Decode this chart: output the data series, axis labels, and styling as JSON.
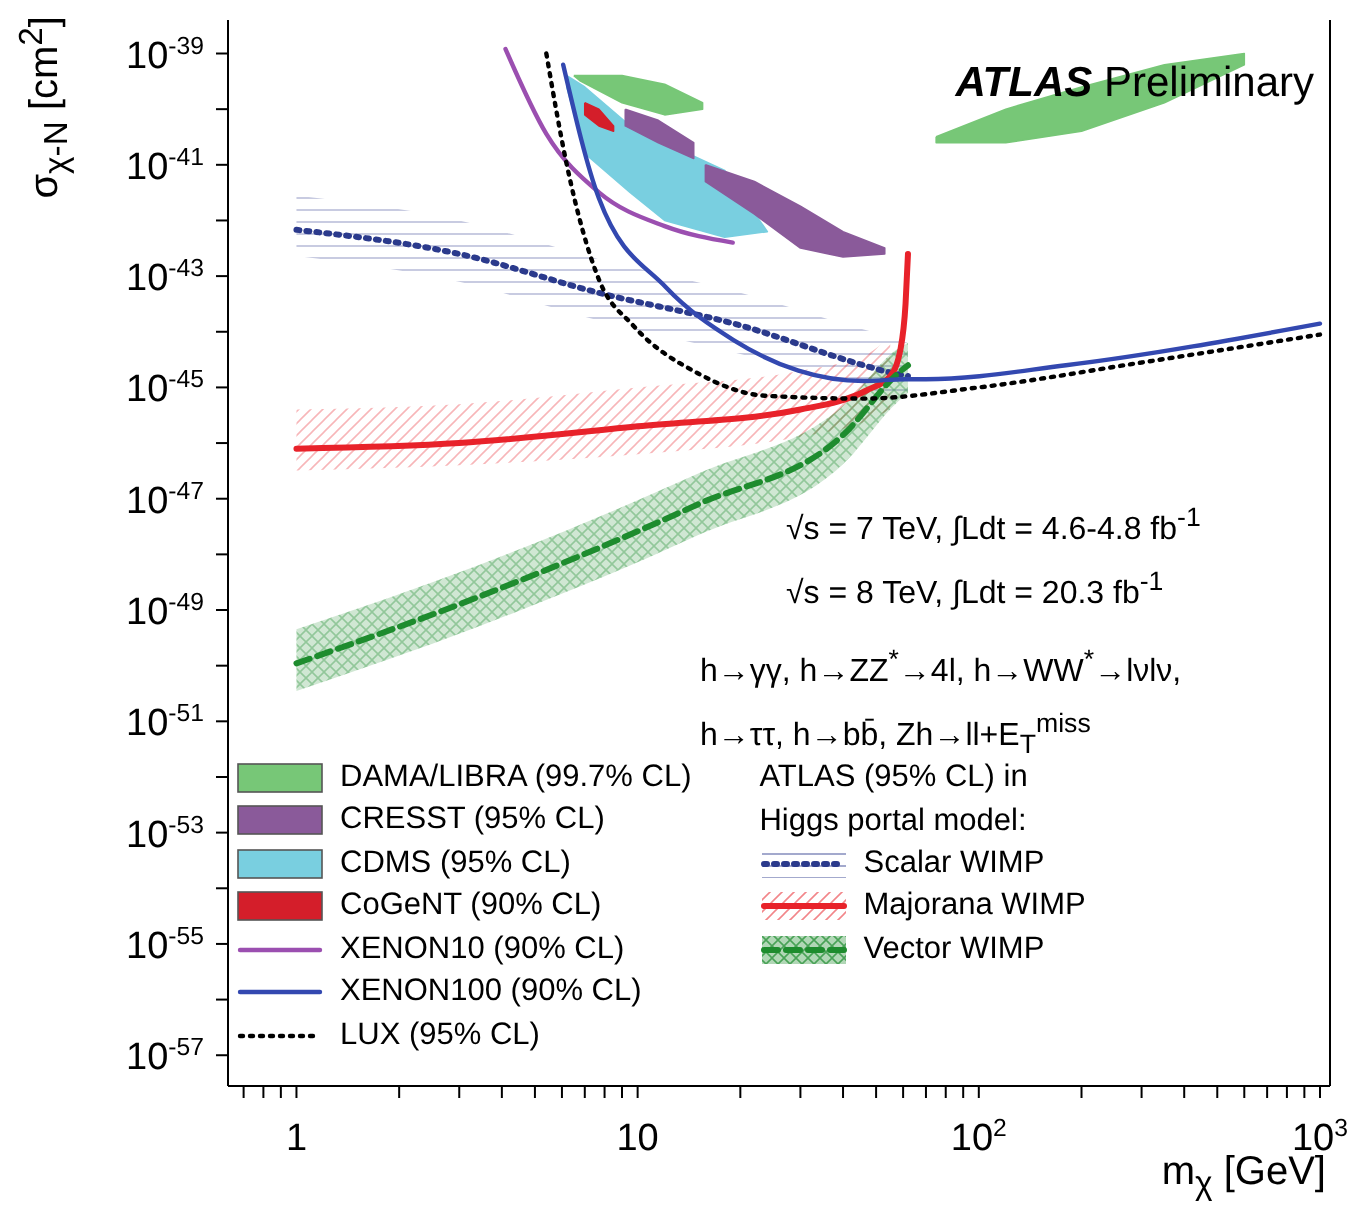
{
  "chart_data": {
    "type": "line",
    "title": "ATLAS Preliminary",
    "xlabel": "m$_{χ}$ [GeV]",
    "ylabel": "σ$_{χ-N}$ [cm$^{2}$]",
    "log": "xy",
    "xlim": [
      0.63,
      1070
    ],
    "ylim": [
      2.8e-58,
      4e-39
    ],
    "xticks": [
      {
        "value": 0.7,
        "label": null
      },
      {
        "value": 0.8,
        "label": null
      },
      {
        "value": 0.9,
        "label": null
      },
      1,
      {
        "value": 2,
        "label": null
      },
      {
        "value": 3,
        "label": null
      },
      {
        "value": 4,
        "label": null
      },
      {
        "value": 5,
        "label": null
      },
      {
        "value": 6,
        "label": null
      },
      {
        "value": 7,
        "label": null
      },
      {
        "value": 8,
        "label": null
      },
      {
        "value": 9,
        "label": null
      },
      10,
      {
        "value": 20,
        "label": null
      },
      {
        "value": 30,
        "label": null
      },
      {
        "value": 40,
        "label": null
      },
      {
        "value": 50,
        "label": null
      },
      {
        "value": 60,
        "label": null
      },
      {
        "value": 70,
        "label": null
      },
      {
        "value": 80,
        "label": null
      },
      {
        "value": 90,
        "label": null
      },
      {
        "value": 100,
        "label": "10$^{2}$"
      },
      {
        "value": 200,
        "label": null
      },
      {
        "value": 300,
        "label": null
      },
      {
        "value": 400,
        "label": null
      },
      {
        "value": 500,
        "label": null
      },
      {
        "value": 600,
        "label": null
      },
      {
        "value": 700,
        "label": null
      },
      {
        "value": 800,
        "label": null
      },
      {
        "value": 900,
        "label": null
      },
      {
        "value": 1000,
        "label": "10$^{3}$"
      }
    ],
    "yticks": [
      {
        "value": 1e-39,
        "label": "10$^{-39}$"
      },
      {
        "value": 1e-40,
        "label": null
      },
      {
        "value": 1e-41,
        "label": "10$^{-41}$"
      },
      {
        "value": 1e-42,
        "label": null
      },
      {
        "value": 1e-43,
        "label": "10$^{-43}$"
      },
      {
        "value": 1e-44,
        "label": null
      },
      {
        "value": 1e-45,
        "label": "10$^{-45}$"
      },
      {
        "value": 1e-46,
        "label": null
      },
      {
        "value": 1e-47,
        "label": "10$^{-47}$"
      },
      {
        "value": 1e-48,
        "label": null
      },
      {
        "value": 1e-49,
        "label": "10$^{-49}$"
      },
      {
        "value": 1e-50,
        "label": null
      },
      {
        "value": 1e-51,
        "label": "10$^{-51}$"
      },
      {
        "value": 1e-52,
        "label": null
      },
      {
        "value": 1e-53,
        "label": "10$^{-53}$"
      },
      {
        "value": 1e-54,
        "label": null
      },
      {
        "value": 1e-55,
        "label": "10$^{-55}$"
      },
      {
        "value": 1e-56,
        "label": null
      },
      {
        "value": 1e-57,
        "label": "10$^{-57}$"
      }
    ],
    "legend": "bottom left",
    "legend_title": "ATLAS (95% CL) in Higgs portal model:",
    "annotations": [
      "√s = 7 TeV, ∫Ldt = 4.6-4.8 fb$^{-1}$",
      "√s = 8 TeV, ∫Ldt = 20.3 fb$^{-1}$",
      "h→γγ, h→ZZ$^{*}$→4l, h→WW$^{*}$→lνlν,",
      "h→ττ, h→bb̄, Zh→ll+E$_{T}$$^{miss}$"
    ],
    "series": [
      {
        "name": "DAMA/LIBRA (99.7% CL)",
        "type": "area",
        "color": "#77c777",
        "x": [
          6.5,
          9,
          12,
          15.5,
          15.5,
          12,
          9,
          6.8,
          6.5,
          40,
          75,
          120,
          200,
          350,
          600,
          600,
          350,
          200,
          120,
          75,
          75
        ],
        "values": [
          4e-40,
          4e-40,
          2.8e-40,
          1.3e-40,
          1e-40,
          7.9e-41,
          1.3e-40,
          3.2e-40,
          4e-40,
          null,
          3.2e-41,
          1e-40,
          2.5e-40,
          6.3e-40,
          1e-39,
          6.3e-40,
          1.3e-40,
          4e-41,
          2.5e-41,
          2.5e-41,
          3.2e-41
        ]
      },
      {
        "name": "CRESST (95% CL)",
        "type": "area",
        "color": "#8a5a9a",
        "x": [
          9.2,
          11.5,
          14.6,
          14.6,
          11.5,
          9.2,
          9.2,
          15.2,
          15.8,
          22,
          30,
          40,
          53,
          53,
          40,
          30,
          22,
          15.8,
          15.8
        ],
        "values": [
          1e-40,
          6.3e-41,
          2.5e-41,
          1.3e-41,
          2.5e-41,
          5e-41,
          1e-40,
          null,
          1e-41,
          5e-42,
          1.8e-42,
          6.3e-43,
          3.2e-43,
          2.5e-43,
          2.2e-43,
          3.2e-43,
          1.3e-42,
          5e-42,
          1e-41
        ]
      },
      {
        "name": "CDMS (95% CL)",
        "type": "area",
        "color": "#79cfe0",
        "x": [
          6.2,
          7,
          9.5,
          12,
          18,
          24,
          18,
          12,
          9.5,
          7,
          6.2,
          6.2
        ],
        "values": [
          4e-40,
          2.5e-40,
          5e-41,
          2.5e-41,
          7.9e-42,
          6.3e-43,
          5e-43,
          1e-42,
          3.2e-42,
          1.6e-41,
          2.5e-40,
          4e-40
        ]
      },
      {
        "name": "CoGeNT (90% CL)",
        "type": "area",
        "color": "#d41e2a",
        "x": [
          7,
          7.7,
          8.5,
          8.5,
          7.7,
          7,
          7
        ],
        "values": [
          1.3e-40,
          1e-40,
          5e-41,
          4e-41,
          5e-41,
          7.9e-41,
          1.3e-40
        ]
      },
      {
        "name": "XENON10 (90% CL)",
        "type": "line",
        "color": "#9b4fb0",
        "line_style": "solid",
        "x": [
          4.1,
          5.4,
          7.7,
          12,
          19
        ],
        "values": [
          1.2e-39,
          3.6e-41,
          3.2e-42,
          7.9e-43,
          4e-43
        ]
      },
      {
        "name": "XENON100 (90% CL)",
        "type": "line",
        "color": "#3348b0",
        "line_style": "solid",
        "x": [
          6.05,
          7.7,
          12.1,
          19.1,
          29.6,
          46,
          61,
          70,
          180,
          1000
        ],
        "values": [
          6.3e-40,
          2.5e-42,
          6.3e-44,
          7.1e-45,
          2e-45,
          1.3e-45,
          1.4e-45,
          1.4e-45,
          2.5e-45,
          1.4e-44
        ]
      },
      {
        "name": "LUX (95% CL)",
        "type": "line",
        "color": "#000000",
        "line_style": "dotted",
        "x": [
          5.4,
          6.2,
          7.7,
          9.7,
          15,
          23.6,
          46,
          100,
          300,
          1000
        ],
        "values": [
          1e-39,
          1e-41,
          8.7e-44,
          1.3e-44,
          1.8e-45,
          7.1e-46,
          6.3e-46,
          1e-45,
          2.8e-45,
          8.9e-45
        ]
      },
      {
        "name": "Scalar WIMP",
        "type": "line",
        "color": "#2b3a8c",
        "line_style": "dotted",
        "x": [
          1,
          3,
          7.7,
          20,
          46,
          56,
          62
        ],
        "values": [
          6.8e-43,
          2.5e-43,
          5e-44,
          1.3e-44,
          2.5e-45,
          1.8e-45,
          1.6e-45
        ],
        "upper": [
          2.8e-42,
          1e-42,
          2e-43,
          5e-44,
          1.1e-44,
          7.9e-45,
          6.3e-45
        ],
        "lower": [
          2.3e-43,
          7.9e-44,
          1.6e-44,
          4e-45,
          1e-45,
          7.1e-46,
          6.3e-46
        ]
      },
      {
        "name": "Majorana WIMP",
        "type": "line",
        "color": "#e8222a",
        "line_style": "solid",
        "x": [
          1,
          3,
          10,
          30,
          47,
          55,
          59,
          61,
          62
        ],
        "values": [
          7.9e-47,
          1e-46,
          2e-46,
          4e-46,
          8.9e-46,
          1.6e-45,
          5e-45,
          3.2e-44,
          2.5e-43
        ],
        "upper": [
          4e-46,
          5e-46,
          1e-45,
          2e-45,
          4e-45,
          8e-45,
          null,
          null,
          null
        ],
        "lower": [
          3.2e-47,
          4e-47,
          6.3e-47,
          1.3e-46,
          2.5e-46,
          4e-46,
          null,
          null,
          null
        ]
      },
      {
        "name": "Vector WIMP",
        "type": "line",
        "color": "#1e8c2e",
        "line_style": "dashed",
        "x": [
          1,
          3.4,
          15,
          40.5,
          58,
          62
        ],
        "values": [
          1.1e-50,
          1.7e-49,
          7.9e-48,
          1.5e-46,
          1.8e-45,
          2.5e-45
        ],
        "upper": [
          4.5e-50,
          6.3e-49,
          2.8e-47,
          5e-46,
          5e-45,
          6.3e-45
        ],
        "lower": [
          3.5e-51,
          5e-50,
          2.2e-48,
          4.5e-47,
          5.6e-46,
          7.9e-46
        ]
      }
    ]
  }
}
